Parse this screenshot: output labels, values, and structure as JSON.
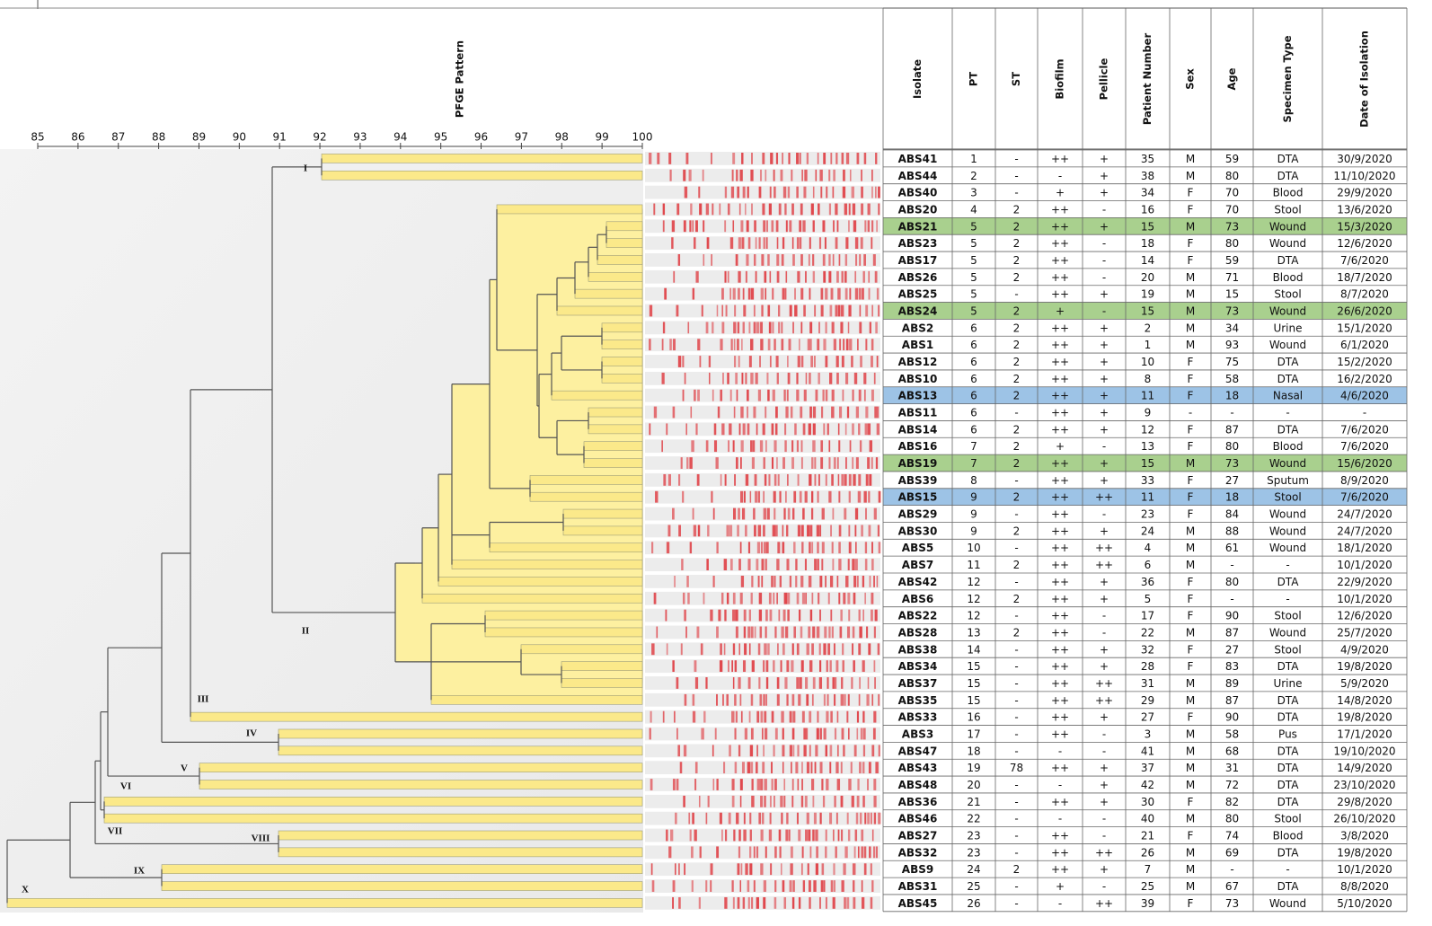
{
  "axis": {
    "title": "PFGE Pattern",
    "ticks": [
      85,
      86,
      87,
      88,
      89,
      90,
      91,
      92,
      93,
      94,
      95,
      96,
      97,
      98,
      99,
      100
    ]
  },
  "clades": [
    "I",
    "II",
    "III",
    "IV",
    "V",
    "VI",
    "VII",
    "VIII",
    "IX",
    "X"
  ],
  "table": {
    "headers": [
      "Isolate",
      "PT",
      "ST",
      "Biofilm",
      "Pellicle",
      "Patient Number",
      "Sex",
      "Age",
      "Specimen Type",
      "Date of Isolation"
    ],
    "rows": [
      [
        "ABS41",
        "1",
        "-",
        "++",
        "+",
        "35",
        "M",
        "59",
        "DTA",
        "30/9/2020"
      ],
      [
        "ABS44",
        "2",
        "-",
        "-",
        "+",
        "38",
        "M",
        "80",
        "DTA",
        "11/10/2020"
      ],
      [
        "ABS40",
        "3",
        "-",
        "+",
        "+",
        "34",
        "F",
        "70",
        "Blood",
        "29/9/2020"
      ],
      [
        "ABS20",
        "4",
        "2",
        "++",
        "-",
        "16",
        "F",
        "70",
        "Stool",
        "13/6/2020"
      ],
      [
        "ABS21",
        "5",
        "2",
        "++",
        "+",
        "15",
        "M",
        "73",
        "Wound",
        "15/3/2020"
      ],
      [
        "ABS23",
        "5",
        "2",
        "++",
        "-",
        "18",
        "F",
        "80",
        "Wound",
        "12/6/2020"
      ],
      [
        "ABS17",
        "5",
        "2",
        "++",
        "-",
        "14",
        "F",
        "59",
        "DTA",
        "7/6/2020"
      ],
      [
        "ABS26",
        "5",
        "2",
        "++",
        "-",
        "20",
        "M",
        "71",
        "Blood",
        "18/7/2020"
      ],
      [
        "ABS25",
        "5",
        "-",
        "++",
        "+",
        "19",
        "M",
        "15",
        "Stool",
        "8/7/2020"
      ],
      [
        "ABS24",
        "5",
        "2",
        "+",
        "-",
        "15",
        "M",
        "73",
        "Wound",
        "26/6/2020"
      ],
      [
        "ABS2",
        "6",
        "2",
        "++",
        "+",
        "2",
        "M",
        "34",
        "Urine",
        "15/1/2020"
      ],
      [
        "ABS1",
        "6",
        "2",
        "++",
        "+",
        "1",
        "M",
        "93",
        "Wound",
        "6/1/2020"
      ],
      [
        "ABS12",
        "6",
        "2",
        "++",
        "+",
        "10",
        "F",
        "75",
        "DTA",
        "15/2/2020"
      ],
      [
        "ABS10",
        "6",
        "2",
        "++",
        "+",
        "8",
        "F",
        "58",
        "DTA",
        "16/2/2020"
      ],
      [
        "ABS13",
        "6",
        "2",
        "++",
        "+",
        "11",
        "F",
        "18",
        "Nasal",
        "4/6/2020"
      ],
      [
        "ABS11",
        "6",
        "-",
        "++",
        "+",
        "9",
        "-",
        "-",
        "-",
        "-"
      ],
      [
        "ABS14",
        "6",
        "2",
        "++",
        "+",
        "12",
        "F",
        "87",
        "DTA",
        "7/6/2020"
      ],
      [
        "ABS16",
        "7",
        "2",
        "+",
        "-",
        "13",
        "F",
        "80",
        "Blood",
        "7/6/2020"
      ],
      [
        "ABS19",
        "7",
        "2",
        "++",
        "+",
        "15",
        "M",
        "73",
        "Wound",
        "15/6/2020"
      ],
      [
        "ABS39",
        "8",
        "-",
        "++",
        "+",
        "33",
        "F",
        "27",
        "Sputum",
        "8/9/2020"
      ],
      [
        "ABS15",
        "9",
        "2",
        "++",
        "++",
        "11",
        "F",
        "18",
        "Stool",
        "7/6/2020"
      ],
      [
        "ABS29",
        "9",
        "-",
        "++",
        "-",
        "23",
        "F",
        "84",
        "Wound",
        "24/7/2020"
      ],
      [
        "ABS30",
        "9",
        "2",
        "++",
        "+",
        "24",
        "M",
        "88",
        "Wound",
        "24/7/2020"
      ],
      [
        "ABS5",
        "10",
        "-",
        "++",
        "++",
        "4",
        "M",
        "61",
        "Wound",
        "18/1/2020"
      ],
      [
        "ABS7",
        "11",
        "2",
        "++",
        "++",
        "6",
        "M",
        "-",
        "-",
        "10/1/2020"
      ],
      [
        "ABS42",
        "12",
        "-",
        "++",
        "+",
        "36",
        "F",
        "80",
        "DTA",
        "22/9/2020"
      ],
      [
        "ABS6",
        "12",
        "2",
        "++",
        "+",
        "5",
        "F",
        "-",
        "-",
        "10/1/2020"
      ],
      [
        "ABS22",
        "12",
        "-",
        "++",
        "-",
        "17",
        "F",
        "90",
        "Stool",
        "12/6/2020"
      ],
      [
        "ABS28",
        "13",
        "2",
        "++",
        "-",
        "22",
        "M",
        "87",
        "Wound",
        "25/7/2020"
      ],
      [
        "ABS38",
        "14",
        "-",
        "++",
        "+",
        "32",
        "F",
        "27",
        "Stool",
        "4/9/2020"
      ],
      [
        "ABS34",
        "15",
        "-",
        "++",
        "+",
        "28",
        "F",
        "83",
        "DTA",
        "19/8/2020"
      ],
      [
        "ABS37",
        "15",
        "-",
        "++",
        "++",
        "31",
        "M",
        "89",
        "Urine",
        "5/9/2020"
      ],
      [
        "ABS35",
        "15",
        "-",
        "++",
        "++",
        "29",
        "M",
        "87",
        "DTA",
        "14/8/2020"
      ],
      [
        "ABS33",
        "16",
        "-",
        "++",
        "+",
        "27",
        "F",
        "90",
        "DTA",
        "19/8/2020"
      ],
      [
        "ABS3",
        "17",
        "-",
        "++",
        "-",
        "3",
        "M",
        "58",
        "Pus",
        "17/1/2020"
      ],
      [
        "ABS47",
        "18",
        "-",
        "-",
        "-",
        "41",
        "M",
        "68",
        "DTA",
        "19/10/2020"
      ],
      [
        "ABS43",
        "19",
        "78",
        "++",
        "+",
        "37",
        "M",
        "31",
        "DTA",
        "14/9/2020"
      ],
      [
        "ABS48",
        "20",
        "-",
        "-",
        "+",
        "42",
        "M",
        "72",
        "DTA",
        "23/10/2020"
      ],
      [
        "ABS36",
        "21",
        "-",
        "++",
        "+",
        "30",
        "F",
        "82",
        "DTA",
        "29/8/2020"
      ],
      [
        "ABS46",
        "22",
        "-",
        "-",
        "-",
        "40",
        "M",
        "80",
        "Stool",
        "26/10/2020"
      ],
      [
        "ABS27",
        "23",
        "-",
        "++",
        "-",
        "21",
        "F",
        "74",
        "Blood",
        "3/8/2020"
      ],
      [
        "ABS32",
        "23",
        "-",
        "++",
        "++",
        "26",
        "M",
        "69",
        "DTA",
        "19/8/2020"
      ],
      [
        "ABS9",
        "24",
        "2",
        "++",
        "+",
        "7",
        "M",
        "-",
        "-",
        "10/1/2020"
      ],
      [
        "ABS31",
        "25",
        "-",
        "+",
        "-",
        "25",
        "M",
        "67",
        "DTA",
        "8/8/2020"
      ],
      [
        "ABS45",
        "26",
        "-",
        "-",
        "++",
        "39",
        "F",
        "73",
        "Wound",
        "5/10/2020"
      ]
    ],
    "row_colors": [
      null,
      null,
      null,
      null,
      "#a9d08e",
      null,
      null,
      null,
      null,
      "#a9d08e",
      null,
      null,
      null,
      null,
      "#9dc3e6",
      null,
      null,
      null,
      "#a9d08e",
      null,
      "#9dc3e6",
      null,
      null,
      null,
      null,
      null,
      null,
      null,
      null,
      null,
      null,
      null,
      null,
      null,
      null,
      null,
      null,
      null,
      null,
      null,
      null,
      null,
      null,
      null,
      null
    ]
  }
}
